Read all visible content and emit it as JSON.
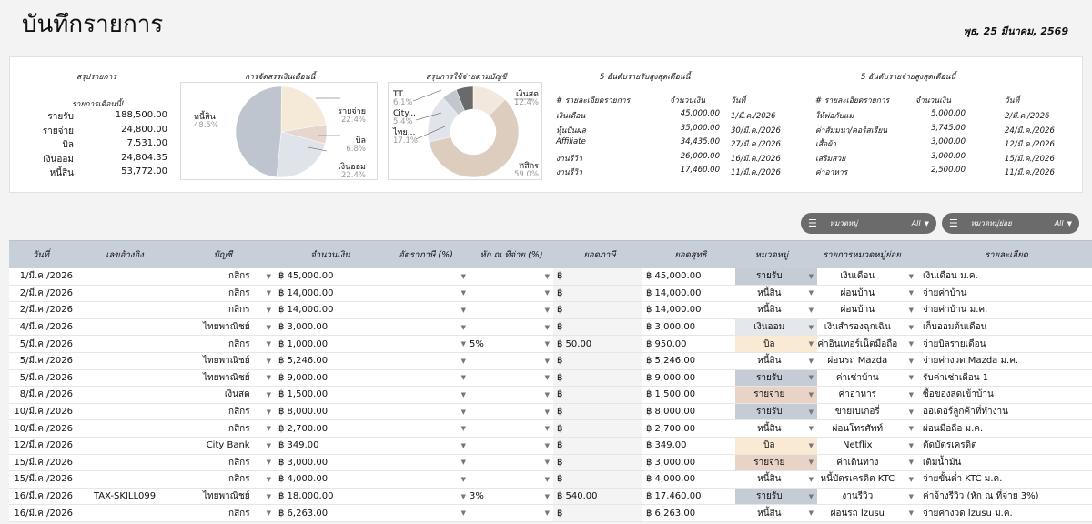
{
  "page": {
    "title": "บันทึกรายการ",
    "date": "พุธ, 25 มีนาคม, 2569"
  },
  "summary": {
    "title": "สรุปรายการ",
    "subtitle": "รายการเดือนนี้!",
    "rows": [
      {
        "label": "รายรับ",
        "value": "188,500.00"
      },
      {
        "label": "รายจ่าย",
        "value": "24,800.00"
      },
      {
        "label": "บิล",
        "value": "7,531.00"
      },
      {
        "label": "เงินออม",
        "value": "24,804.35"
      },
      {
        "label": "หนี้สิน",
        "value": "53,772.00"
      }
    ]
  },
  "pie": {
    "title": "การจัดสรรเงินเดือนนี้",
    "slices": [
      {
        "label": "หนี้สิน",
        "pct": "48.5%",
        "value": 48.5,
        "color": "#bec5cf"
      },
      {
        "label": "รายจ่าย",
        "pct": "22.4%",
        "value": 22.4,
        "color": "#f5ead8"
      },
      {
        "label": "บิล",
        "pct": "6.8%",
        "value": 6.8,
        "color": "#e6d6ce"
      },
      {
        "label": "เงินออม",
        "pct": "22.4%",
        "value": 22.4,
        "color": "#dfe3ea"
      }
    ]
  },
  "donut": {
    "title": "สรุปการใช้จ่ายตามบัญชี",
    "slices": [
      {
        "label": "เงินสด",
        "pct": "12.4%",
        "value": 12.4,
        "color": "#f2e8de"
      },
      {
        "label": "กสิกร",
        "pct": "59.0%",
        "value": 59.0,
        "color": "#dccdbe"
      },
      {
        "label": "ไทย...",
        "pct": "17.1%",
        "value": 17.1,
        "color": "#e1e4ea"
      },
      {
        "label": "City...",
        "pct": "5.4%",
        "value": 5.4,
        "color": "#c2c7ce"
      },
      {
        "label": "TT...",
        "pct": "6.1%",
        "value": 6.1,
        "color": "#6a6a6a"
      }
    ]
  },
  "top_income": {
    "title": "5 อันดับรายรับสูงสุดเดือนนี้",
    "headers": [
      "# รายละเอียดรายการ",
      "จำนวนเงิน",
      "วันที่"
    ],
    "rows": [
      [
        "เงินเดือน",
        "45,000.00",
        "1/มี.ค./2026"
      ],
      [
        "หุ้นปันผล",
        "35,000.00",
        "30/มี.ค./2026"
      ],
      [
        "Affiliate",
        "34,435.00",
        "27/มี.ค./2026"
      ],
      [
        "งานรีวิว",
        "26,000.00",
        "16/มี.ค./2026"
      ],
      [
        "งานรีวิว",
        "17,460.00",
        "11/มี.ค./2026"
      ]
    ]
  },
  "top_expense": {
    "title": "5 อันดับรายจ่ายสูงสุดเดือนนี้",
    "headers": [
      "# รายละเอียดรายการ",
      "จำนวนเงิน",
      "วันที่"
    ],
    "rows": [
      [
        "ให้พ่อกับแม่",
        "5,000.00",
        "2/มี.ค./2026"
      ],
      [
        "ค่าสัมมนา/คอร์สเรียน",
        "3,745.00",
        "24/มี.ค./2026"
      ],
      [
        "เสื้อผ้า",
        "3,000.00",
        "12/มี.ค./2026"
      ],
      [
        "เสริมสวย",
        "3,000.00",
        "15/มี.ค./2026"
      ],
      [
        "ค่าอาหาร",
        "2,500.00",
        "11/มี.ค./2026"
      ]
    ]
  },
  "filters": [
    {
      "label": "หมวดหมู่",
      "value": "All"
    },
    {
      "label": "หมวดหมู่ย่อย",
      "value": "All"
    }
  ],
  "table": {
    "headers": [
      "วันที่",
      "เลขอ้างอิง",
      "บัญชี",
      "จำนวนเงิน",
      "อัตราภาษี (%)",
      "หัก ณ ที่จ่าย (%)",
      "ยอดภาษี",
      "ยอดสุทธิ",
      "หมวดหมู่",
      "รายการหมวดหมู่ย่อย",
      "รายละเอียด"
    ],
    "currency": "฿",
    "colors": {
      "รายรับ": "#c5ccd6",
      "หนี้สิน": "#ffffff",
      "เงินออม": "#e4e7ec",
      "บิล": "#f9ead3",
      "รายจ่าย": "#e8d3c6"
    },
    "rows": [
      {
        "date": "1/มี.ค./2026",
        "ref": "",
        "acc": "กสิกร",
        "amt": "45,000.00",
        "tax": "",
        "wh": "",
        "taxv": "",
        "net": "45,000.00",
        "cat": "รายรับ",
        "sub": "เงินเดือน",
        "det": "เงินเดือน ม.ค."
      },
      {
        "date": "2/มี.ค./2026",
        "ref": "",
        "acc": "กสิกร",
        "amt": "14,000.00",
        "tax": "",
        "wh": "",
        "taxv": "",
        "net": "14,000.00",
        "cat": "หนี้สิน",
        "sub": "ผ่อนบ้าน",
        "det": "จ่ายค่าบ้าน"
      },
      {
        "date": "2/มี.ค./2026",
        "ref": "",
        "acc": "กสิกร",
        "amt": "14,000.00",
        "tax": "",
        "wh": "",
        "taxv": "",
        "net": "14,000.00",
        "cat": "หนี้สิน",
        "sub": "ผ่อนบ้าน",
        "det": "จ่ายค่าบ้าน ม.ค."
      },
      {
        "date": "4/มี.ค./2026",
        "ref": "",
        "acc": "ไทยพาณิชย์",
        "amt": "3,000.00",
        "tax": "",
        "wh": "",
        "taxv": "",
        "net": "3,000.00",
        "cat": "เงินออม",
        "sub": "เงินสำรองฉุกเฉิน",
        "det": "เก็บออมต้นเดือน"
      },
      {
        "date": "5/มี.ค./2026",
        "ref": "",
        "acc": "กสิกร",
        "amt": "1,000.00",
        "tax": "",
        "wh": "5%",
        "taxv": "50.00",
        "net": "950.00",
        "cat": "บิล",
        "sub": "ค่าอินเทอร์เน็ตมือถือ",
        "det": "จ่ายบิลรายเดือน"
      },
      {
        "date": "5/มี.ค./2026",
        "ref": "",
        "acc": "ไทยพาณิชย์",
        "amt": "5,246.00",
        "tax": "",
        "wh": "",
        "taxv": "",
        "net": "5,246.00",
        "cat": "หนี้สิน",
        "sub": "ผ่อนรถ Mazda",
        "det": "จ่ายค่างวด Mazda ม.ค."
      },
      {
        "date": "5/มี.ค./2026",
        "ref": "",
        "acc": "ไทยพาณิชย์",
        "amt": "9,000.00",
        "tax": "",
        "wh": "",
        "taxv": "",
        "net": "9,000.00",
        "cat": "รายรับ",
        "sub": "ค่าเช่าบ้าน",
        "det": "รับค่าเช่าเดือน 1"
      },
      {
        "date": "8/มี.ค./2026",
        "ref": "",
        "acc": "เงินสด",
        "amt": "1,500.00",
        "tax": "",
        "wh": "",
        "taxv": "",
        "net": "1,500.00",
        "cat": "รายจ่าย",
        "sub": "ค่าอาหาร",
        "det": "ซื้อของสดเข้าบ้าน"
      },
      {
        "date": "10/มี.ค./2026",
        "ref": "",
        "acc": "กสิกร",
        "amt": "8,000.00",
        "tax": "",
        "wh": "",
        "taxv": "",
        "net": "8,000.00",
        "cat": "รายรับ",
        "sub": "ขายเบเกอรี่",
        "det": "ออเดอร์ลูกค้าที่ทำงาน"
      },
      {
        "date": "10/มี.ค./2026",
        "ref": "",
        "acc": "กสิกร",
        "amt": "2,700.00",
        "tax": "",
        "wh": "",
        "taxv": "",
        "net": "2,700.00",
        "cat": "หนี้สิน",
        "sub": "ผ่อนโทรศัพท์",
        "det": "ผ่อนมือถือ ม.ค."
      },
      {
        "date": "12/มี.ค./2026",
        "ref": "",
        "acc": "City Bank",
        "amt": "349.00",
        "tax": "",
        "wh": "",
        "taxv": "",
        "net": "349.00",
        "cat": "บิล",
        "sub": "Netflix",
        "det": "ตัดบัตรเครดิต"
      },
      {
        "date": "15/มี.ค./2026",
        "ref": "",
        "acc": "กสิกร",
        "amt": "3,000.00",
        "tax": "",
        "wh": "",
        "taxv": "",
        "net": "3,000.00",
        "cat": "รายจ่าย",
        "sub": "ค่าเดินทาง",
        "det": "เติมน้ำมัน"
      },
      {
        "date": "15/มี.ค./2026",
        "ref": "",
        "acc": "กสิกร",
        "amt": "4,000.00",
        "tax": "",
        "wh": "",
        "taxv": "",
        "net": "4,000.00",
        "cat": "หนี้สิน",
        "sub": "หนี้บัตรเครดิต KTC",
        "det": "จ่ายขั้นต่ำ KTC ม.ค."
      },
      {
        "date": "16/มี.ค./2026",
        "ref": "TAX-SKILL099",
        "acc": "ไทยพาณิชย์",
        "amt": "18,000.00",
        "tax": "",
        "wh": "3%",
        "taxv": "540.00",
        "net": "17,460.00",
        "cat": "รายรับ",
        "sub": "งานรีวิว",
        "det": "ค่าจ้างรีวิว (หัก ณ ที่จ่าย 3%)"
      },
      {
        "date": "16/มี.ค./2026",
        "ref": "",
        "acc": "กสิกร",
        "amt": "6,263.00",
        "tax": "",
        "wh": "",
        "taxv": "",
        "net": "6,263.00",
        "cat": "หนี้สิน",
        "sub": "ผ่อนรถ Izusu",
        "det": "จ่ายค่างวด Izusu ม.ค."
      }
    ]
  }
}
